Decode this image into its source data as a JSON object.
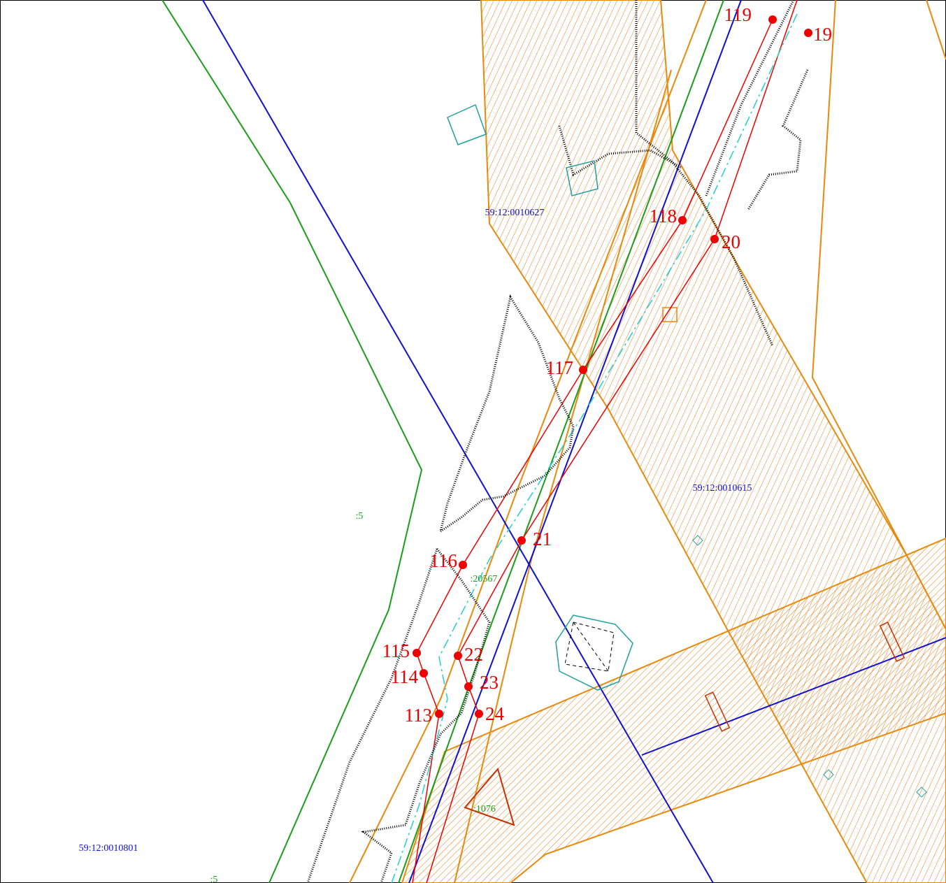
{
  "points": [
    {
      "label": "119"
    },
    {
      "label": "19"
    },
    {
      "label": "118"
    },
    {
      "label": "20"
    },
    {
      "label": "117"
    },
    {
      "label": "21"
    },
    {
      "label": "116"
    },
    {
      "label": "115"
    },
    {
      "label": "22"
    },
    {
      "label": "114"
    },
    {
      "label": "23"
    },
    {
      "label": "113"
    },
    {
      "label": "24"
    }
  ],
  "parcels": [
    {
      "label": "59:12:0010627"
    },
    {
      "label": "59:12:0010615"
    },
    {
      "label": "59:12:0010801"
    },
    {
      "label": ":5"
    },
    {
      "label": ":5"
    },
    {
      "label": ":20567"
    },
    {
      "label": ":1076"
    }
  ]
}
